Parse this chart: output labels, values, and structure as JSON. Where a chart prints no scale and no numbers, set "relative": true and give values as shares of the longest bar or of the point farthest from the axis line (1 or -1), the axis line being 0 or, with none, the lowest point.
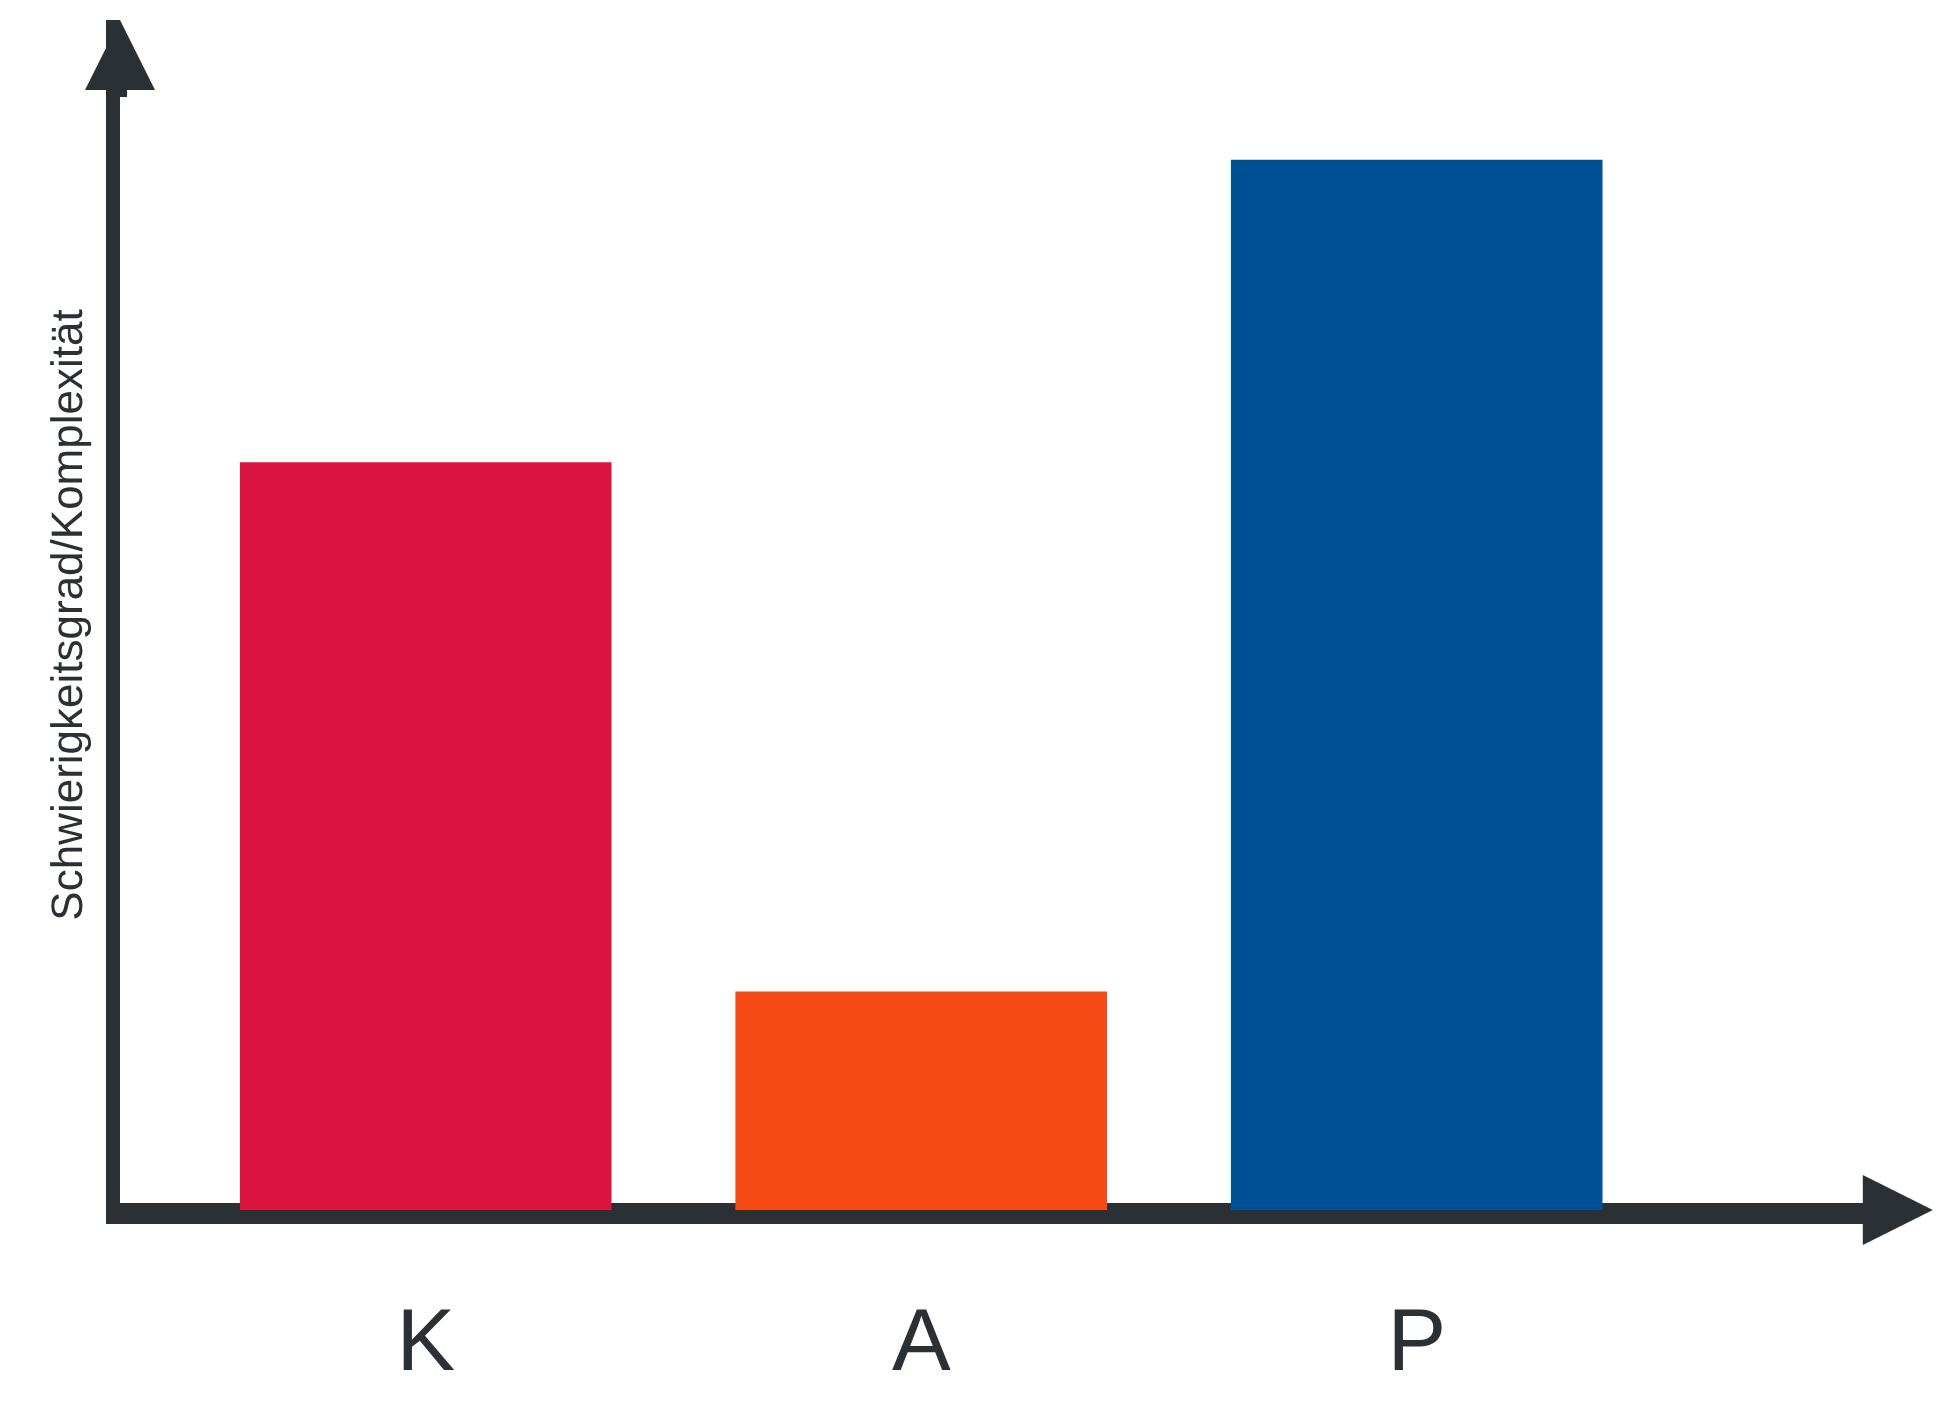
{
  "chart_data": {
    "type": "bar",
    "ylabel": "Schwierigkeitsgrad/Komplexität",
    "categories": [
      "K",
      "A",
      "P"
    ],
    "relative": true,
    "values": [
      0.712,
      0.208,
      1
    ],
    "colors": [
      "#db1540",
      "#f74b15",
      "#005096"
    ],
    "legend": false
  }
}
